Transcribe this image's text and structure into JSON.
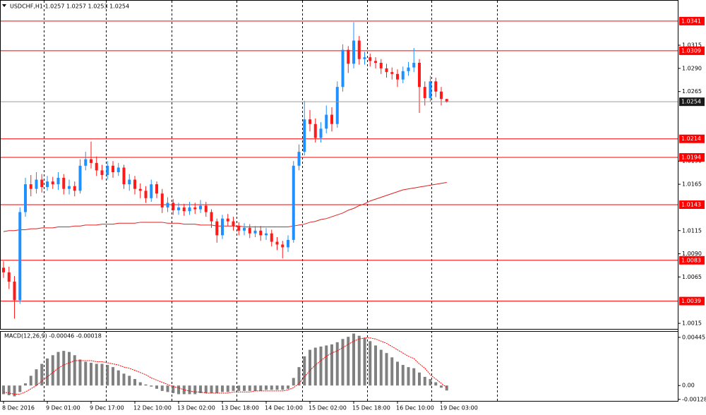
{
  "chart_data": [
    {
      "type": "candlestick",
      "title": "USDCHF,H1  1.0257 1.0257 1.0253 1.0254",
      "categories": [
        "8 Dec 2016",
        null,
        null,
        null,
        null,
        null,
        null,
        null,
        "9 Dec 01:00",
        null,
        null,
        null,
        null,
        null,
        null,
        null,
        "9 Dec 17:00",
        null,
        null,
        null,
        null,
        null,
        null,
        null,
        "12 Dec 10:00",
        null,
        null,
        null,
        null,
        null,
        null,
        null,
        "13 Dec 02:00",
        null,
        null,
        null,
        null,
        null,
        null,
        null,
        "13 Dec 18:00",
        null,
        null,
        null,
        null,
        null,
        null,
        null,
        "14 Dec 10:00",
        null,
        null,
        null,
        null,
        null,
        null,
        null,
        "15 Dec 02:00",
        null,
        null,
        null,
        null,
        null,
        null,
        null,
        "15 Dec 18:00",
        null,
        null,
        null,
        null,
        null,
        null,
        null,
        "16 Dec 10:00",
        null,
        null,
        null,
        null,
        null,
        null,
        null,
        "19 Dec 03:00",
        null
      ],
      "open": [
        1.0075,
        1.007,
        1.006,
        1.004,
        1.0135,
        1.0165,
        1.016,
        1.017,
        1.0162,
        1.0168,
        1.0165,
        1.0172,
        1.016,
        1.0163,
        1.0158,
        1.0185,
        1.0192,
        1.0188,
        1.018,
        1.0175,
        1.0185,
        1.0178,
        1.0183,
        1.0165,
        1.017,
        1.016,
        1.0158,
        1.015,
        1.0165,
        1.0155,
        1.014,
        1.0145,
        1.0137,
        1.014,
        1.0136,
        1.014,
        1.0138,
        1.0142,
        1.0135,
        1.0125,
        1.011,
        1.0128,
        1.0125,
        1.012,
        1.0115,
        1.0118,
        1.0112,
        1.0115,
        1.011,
        1.0112,
        1.0103,
        1.01,
        1.0097,
        1.0105,
        1.0185,
        1.02,
        1.0235,
        1.023,
        1.0215,
        1.0225,
        1.024,
        1.023,
        1.027,
        1.031,
        1.0295,
        1.032,
        1.03,
        1.0302,
        1.0298,
        1.0296,
        1.029,
        1.0286,
        1.0284,
        1.0278,
        1.0287,
        1.0291,
        1.0296,
        1.027,
        1.0258,
        1.0276,
        1.0265,
        1.0257
      ],
      "high": [
        1.0082,
        1.0076,
        1.0066,
        1.014,
        1.0172,
        1.0175,
        1.0178,
        1.0176,
        1.0174,
        1.0173,
        1.0178,
        1.0176,
        1.017,
        1.0168,
        1.0192,
        1.02,
        1.0211,
        1.0195,
        1.0186,
        1.019,
        1.019,
        1.0188,
        1.0186,
        1.0176,
        1.0174,
        1.0166,
        1.0163,
        1.017,
        1.0168,
        1.016,
        1.0151,
        1.0149,
        1.0145,
        1.0144,
        1.0146,
        1.0145,
        1.0148,
        1.0146,
        1.0138,
        1.0128,
        1.0132,
        1.0133,
        1.013,
        1.0124,
        1.0123,
        1.0122,
        1.012,
        1.012,
        1.0118,
        1.0116,
        1.0108,
        1.0104,
        1.011,
        1.019,
        1.0208,
        1.0255,
        1.0245,
        1.0236,
        1.0232,
        1.025,
        1.0248,
        1.0276,
        1.0316,
        1.0314,
        1.034,
        1.0325,
        1.0308,
        1.0306,
        1.0302,
        1.03,
        1.0295,
        1.0291,
        1.0289,
        1.0292,
        1.0297,
        1.0312,
        1.03,
        1.0276,
        1.0282,
        1.028,
        1.027,
        1.0257
      ],
      "low": [
        1.0064,
        1.0052,
        1.002,
        1.0036,
        1.013,
        1.0152,
        1.0155,
        1.0156,
        1.0158,
        1.016,
        1.0159,
        1.0154,
        1.0154,
        1.0152,
        1.0155,
        1.018,
        1.0182,
        1.0174,
        1.017,
        1.017,
        1.0172,
        1.0174,
        1.016,
        1.0158,
        1.0154,
        1.015,
        1.0145,
        1.0146,
        1.015,
        1.0134,
        1.0135,
        1.0132,
        1.0132,
        1.0131,
        1.0132,
        1.0133,
        1.0134,
        1.013,
        1.0118,
        1.0102,
        1.0106,
        1.012,
        1.0115,
        1.011,
        1.011,
        1.0107,
        1.0108,
        1.0104,
        1.0105,
        1.0098,
        1.0094,
        1.0085,
        1.0092,
        1.0102,
        1.018,
        1.0196,
        1.0222,
        1.021,
        1.021,
        1.022,
        1.0222,
        1.0226,
        1.0265,
        1.0285,
        1.029,
        1.0294,
        1.0294,
        1.0292,
        1.029,
        1.0284,
        1.028,
        1.0278,
        1.027,
        1.0274,
        1.0282,
        1.0286,
        1.0242,
        1.025,
        1.0254,
        1.0259,
        1.025,
        1.0253
      ],
      "close": [
        1.007,
        1.006,
        1.004,
        1.0135,
        1.0165,
        1.016,
        1.017,
        1.0162,
        1.0168,
        1.0165,
        1.0172,
        1.016,
        1.0163,
        1.0158,
        1.0185,
        1.0192,
        1.0188,
        1.018,
        1.0175,
        1.0185,
        1.0178,
        1.0183,
        1.0165,
        1.017,
        1.016,
        1.0158,
        1.015,
        1.0165,
        1.0155,
        1.014,
        1.0145,
        1.0137,
        1.014,
        1.0136,
        1.014,
        1.0138,
        1.0142,
        1.0135,
        1.0125,
        1.011,
        1.0128,
        1.0125,
        1.012,
        1.0115,
        1.0118,
        1.0112,
        1.0115,
        1.011,
        1.0112,
        1.0103,
        1.01,
        1.0097,
        1.0105,
        1.0185,
        1.02,
        1.0235,
        1.023,
        1.0215,
        1.0225,
        1.024,
        1.023,
        1.027,
        1.031,
        1.0295,
        1.032,
        1.03,
        1.0302,
        1.0298,
        1.0296,
        1.029,
        1.0286,
        1.0284,
        1.0278,
        1.0287,
        1.0291,
        1.0296,
        1.027,
        1.0258,
        1.0276,
        1.0265,
        1.0257,
        1.0254
      ],
      "up_color": "#1e90ff",
      "down_color": "#ff1a1a",
      "moving_average": {
        "color": "#e02020",
        "values": [
          1.0114,
          1.0115,
          1.0115,
          1.0116,
          1.0116,
          1.0117,
          1.0117,
          1.0118,
          1.0118,
          1.0118,
          1.0119,
          1.0119,
          1.0119,
          1.012,
          1.012,
          1.0121,
          1.0121,
          1.0121,
          1.0122,
          1.0122,
          1.0122,
          1.0123,
          1.0123,
          1.0123,
          1.0123,
          1.0124,
          1.0124,
          1.0124,
          1.0124,
          1.0124,
          1.0123,
          1.0123,
          1.0123,
          1.0122,
          1.0122,
          1.0122,
          1.0121,
          1.0121,
          1.0121,
          1.012,
          1.012,
          1.012,
          1.012,
          1.012,
          1.0119,
          1.0119,
          1.0119,
          1.0119,
          1.0119,
          1.0119,
          1.0119,
          1.0119,
          1.0119,
          1.012,
          1.0121,
          1.0122,
          1.0124,
          1.0125,
          1.0127,
          1.0128,
          1.013,
          1.0132,
          1.0134,
          1.0137,
          1.0139,
          1.0142,
          1.0144,
          1.0147,
          1.0149,
          1.0151,
          1.0153,
          1.0155,
          1.0157,
          1.0159,
          1.016,
          1.0161,
          1.0162,
          1.0163,
          1.0164,
          1.0165,
          1.0166,
          1.0167
        ]
      },
      "levels": [
        1.0341,
        1.0309,
        1.0214,
        1.0194,
        1.0143,
        1.0083,
        1.0039
      ],
      "level_color": "#ff0000",
      "price_line": 1.0254,
      "ylim": [
        1.0009,
        1.0363
      ],
      "yticks": [
        1.0315,
        {
          "value": 1.029,
          "label": "1.0290"
        },
        1.0265,
        {
          "value": 1.019,
          "label": "1.0190"
        },
        1.0165,
        1.0115,
        {
          "value": 1.009,
          "label": "1.0090"
        },
        1.0065,
        1.0015
      ]
    },
    {
      "type": "macd",
      "title": "MACD(12,26,9) -0.00046 -0.00018",
      "histogram": [
        -0.0008,
        -0.0009,
        -0.001,
        -0.0006,
        0.0002,
        0.0009,
        0.0015,
        0.002,
        0.0025,
        0.0028,
        0.0031,
        0.0032,
        0.0031,
        0.0028,
        0.0024,
        0.0022,
        0.0021,
        0.002,
        0.002,
        0.0019,
        0.0017,
        0.0014,
        0.0011,
        0.0009,
        0.0006,
        0.0003,
        0.0001,
        -0.0001,
        -0.0003,
        -0.0005,
        -0.0006,
        -0.0007,
        -0.0008,
        -0.0008,
        -0.0008,
        -0.0008,
        -0.0007,
        -0.0007,
        -0.0007,
        -0.0007,
        -0.0006,
        -0.0006,
        -0.0005,
        -0.0005,
        -0.0005,
        -0.0005,
        -0.0005,
        -0.0005,
        -0.0004,
        -0.0004,
        -0.0004,
        -0.0004,
        -0.0003,
        0.0007,
        0.0017,
        0.0027,
        0.0033,
        0.0035,
        0.0036,
        0.0037,
        0.0038,
        0.004,
        0.0043,
        0.0045,
        0.0048,
        0.0046,
        0.0044,
        0.0041,
        0.0037,
        0.0033,
        0.003,
        0.0026,
        0.0022,
        0.0019,
        0.0017,
        0.0016,
        0.0012,
        0.0008,
        0.0006,
        0.0003,
        -0.0002,
        -0.00046
      ],
      "signal": [
        -0.0006,
        -0.0007,
        -0.0008,
        -0.0008,
        -0.0006,
        -0.0003,
        0.0,
        0.0004,
        0.0008,
        0.0012,
        0.0016,
        0.0019,
        0.0021,
        0.0023,
        0.0023,
        0.0023,
        0.0023,
        0.0022,
        0.0022,
        0.0021,
        0.002,
        0.0019,
        0.0017,
        0.0016,
        0.0014,
        0.0012,
        0.001,
        0.0007,
        0.0005,
        0.0003,
        0.0001,
        -0.0001,
        -0.0002,
        -0.0004,
        -0.0005,
        -0.0006,
        -0.0006,
        -0.0007,
        -0.0007,
        -0.0007,
        -0.0007,
        -0.0007,
        -0.0006,
        -0.0006,
        -0.0006,
        -0.0006,
        -0.0005,
        -0.0005,
        -0.0005,
        -0.0005,
        -0.0005,
        -0.0005,
        -0.0004,
        -0.0002,
        0.0002,
        0.0008,
        0.0014,
        0.0019,
        0.0023,
        0.0027,
        0.003,
        0.0032,
        0.0035,
        0.0038,
        0.0041,
        0.0043,
        0.0044,
        0.0044,
        0.0043,
        0.0041,
        0.0039,
        0.0036,
        0.0033,
        0.003,
        0.0027,
        0.0025,
        0.002,
        0.0016,
        0.001,
        0.0006,
        0.0002,
        -0.00018
      ],
      "histogram_color": "#808080",
      "signal_color": "#ff0000",
      "ylim": [
        -0.00142,
        0.00497
      ],
      "yticks": [
        0.00445,
        {
          "value": 0,
          "label": "0.00"
        },
        -0.00128
      ]
    }
  ]
}
